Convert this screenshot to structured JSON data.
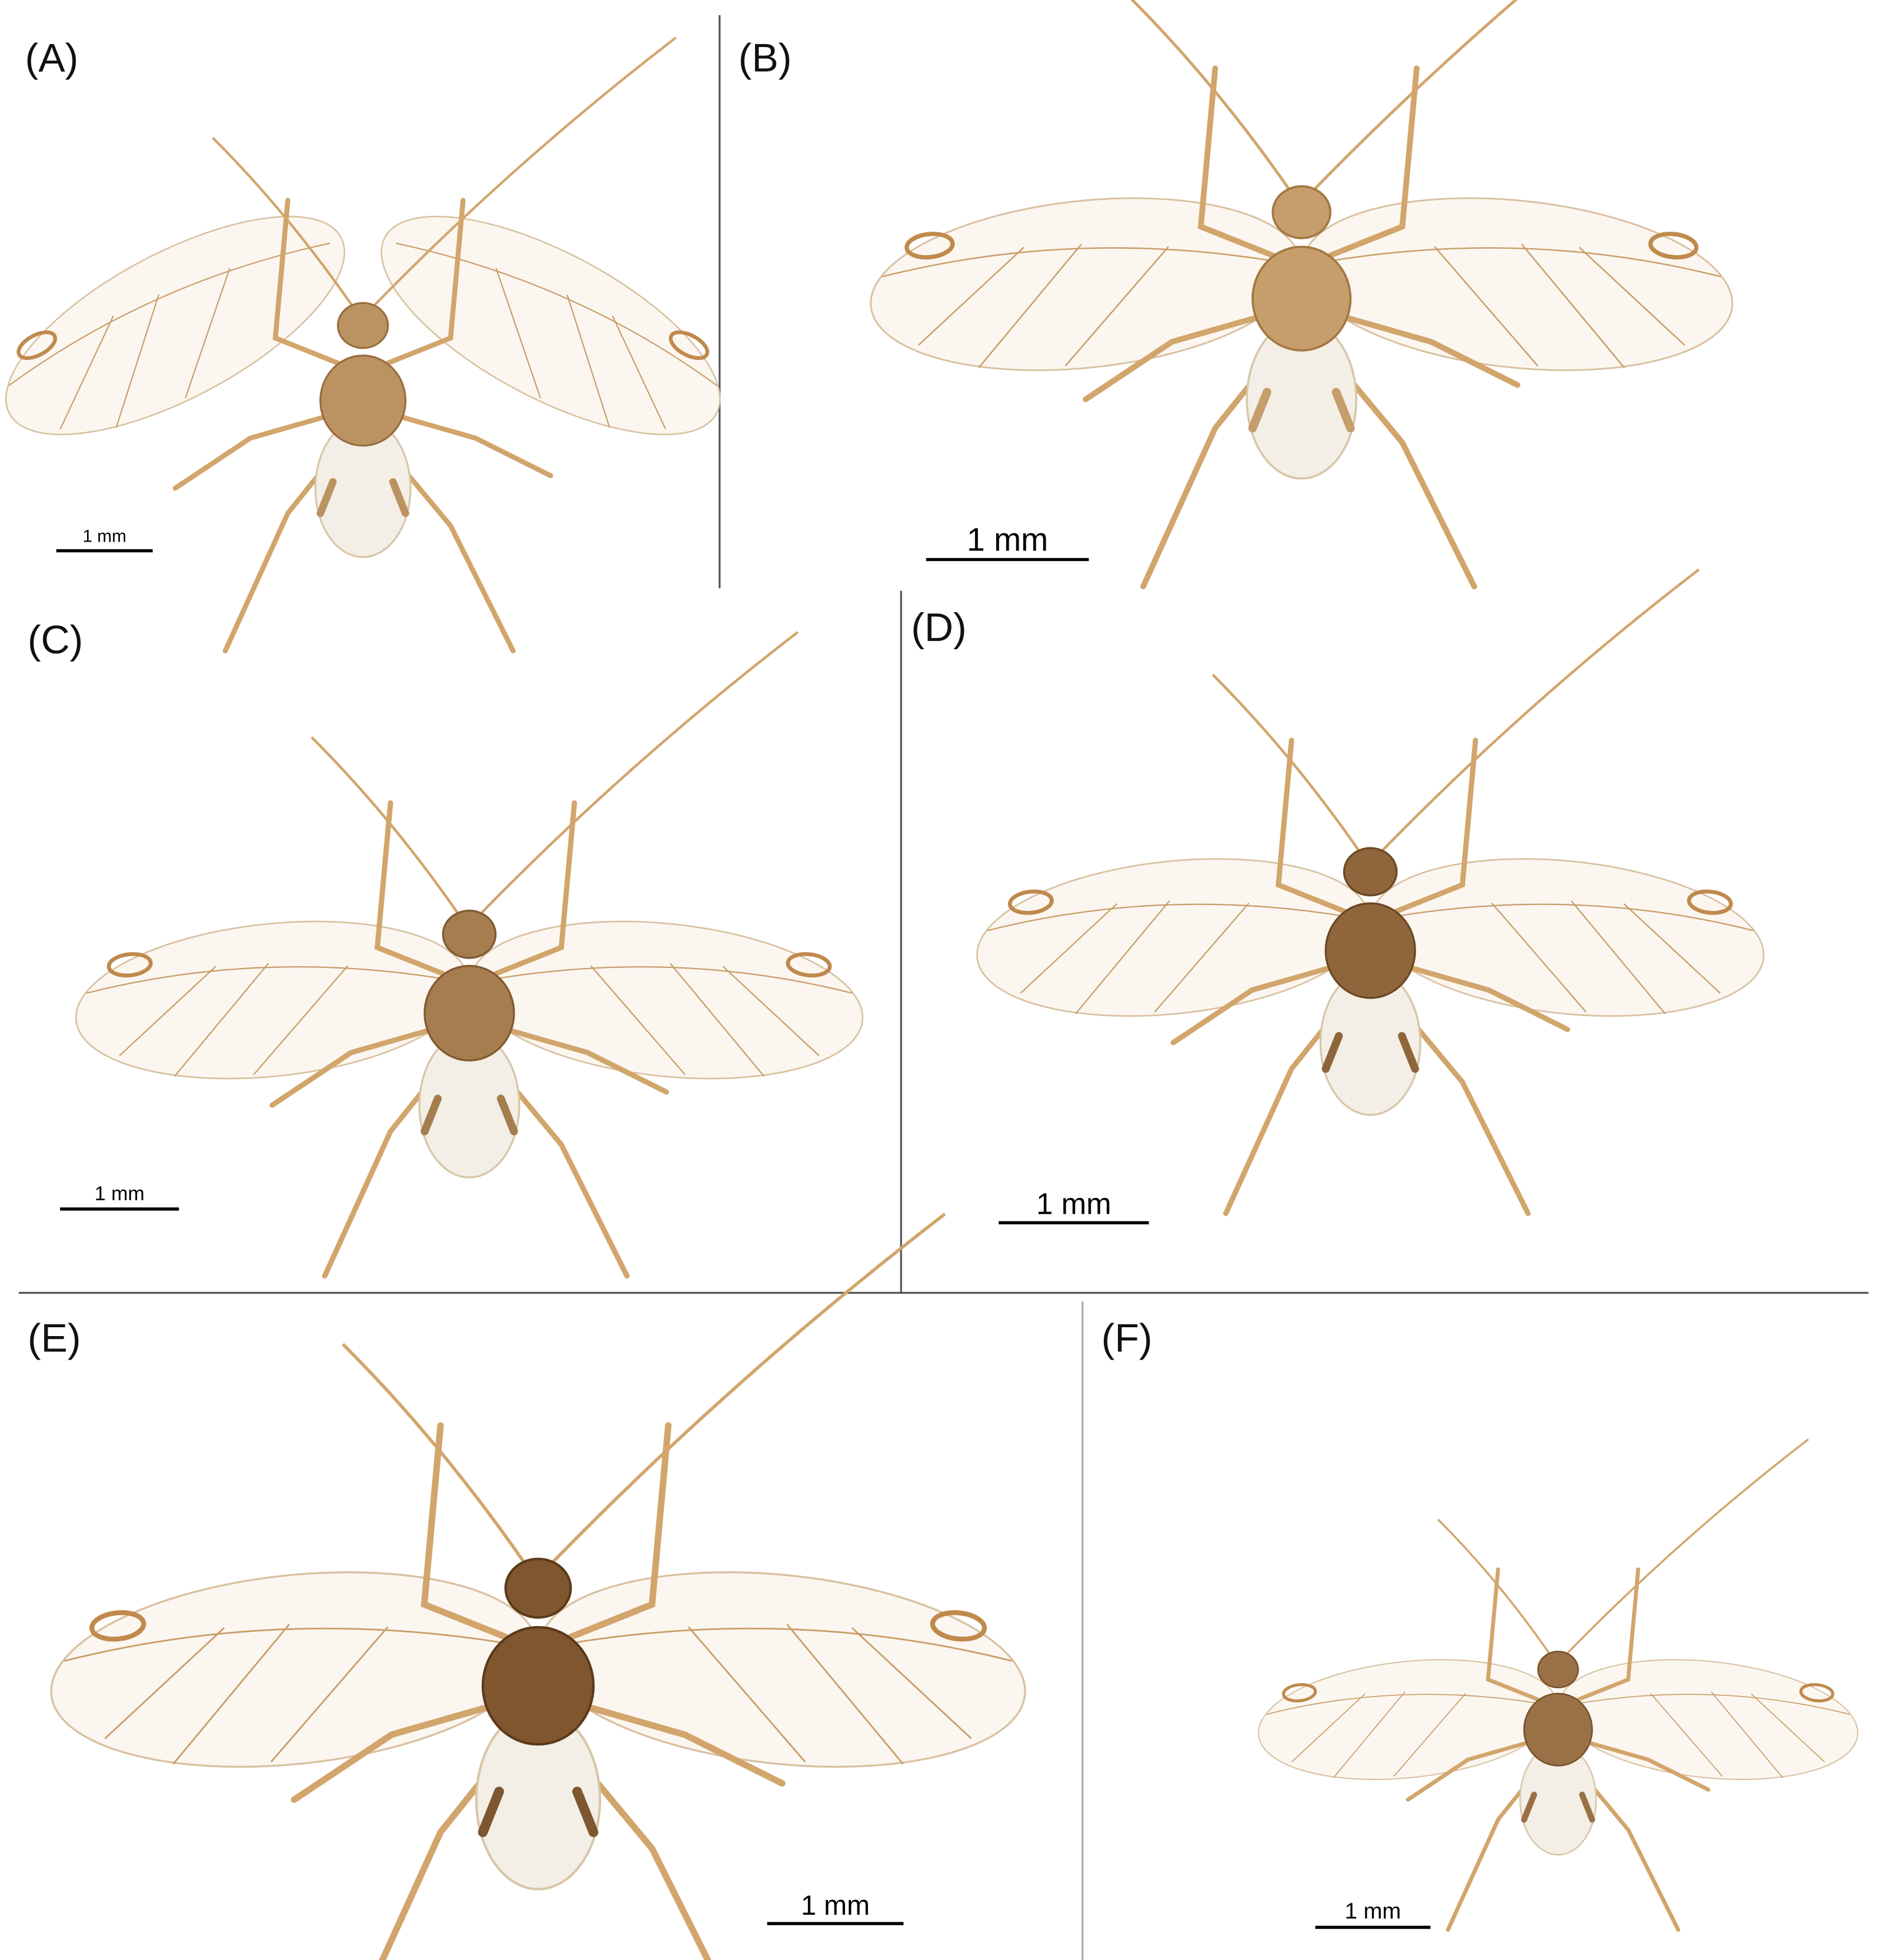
{
  "panels": [
    {
      "label": "(A)",
      "scale_bar": "1 mm"
    },
    {
      "label": "(B)",
      "scale_bar": "1 mm"
    },
    {
      "label": "(C)",
      "scale_bar": "1 mm"
    },
    {
      "label": "(D)",
      "scale_bar": "1 mm"
    },
    {
      "label": "(E)",
      "scale_bar": "1 mm"
    },
    {
      "label": "(F)",
      "scale_bar": "1 mm"
    }
  ]
}
